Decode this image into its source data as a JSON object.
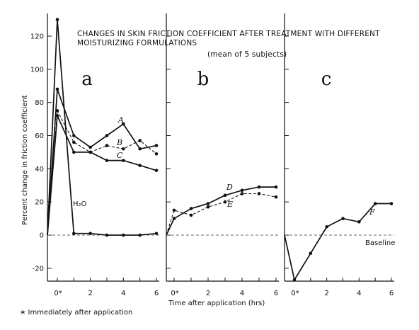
{
  "title": "CHANGES IN SKIN FRICTION COEFFICIENT AFTER TREATMENT WITH DIFFERENT",
  "title_line2": "MOISTURIZING FORMULATIONS",
  "subtitle": "(mean of 5 subjects)",
  "ylabel": "Percent change in friction coefficient",
  "xlabel": "Time after application (hrs)",
  "footnote": "∗ Immediately after application",
  "baseline_label": "Baseline",
  "chart_data": [
    {
      "type": "line",
      "panel": "a",
      "ylim": [
        -25,
        130
      ],
      "yticks": [
        "-20",
        "0",
        "20",
        "40",
        "60",
        "80",
        "100",
        "120"
      ],
      "ytick_values": [
        -20,
        0,
        20,
        40,
        60,
        80,
        100,
        120
      ],
      "xlim": [
        -1,
        6
      ],
      "xticks": [
        "0*",
        "2",
        "4",
        "6"
      ],
      "xtick_values": [
        0,
        2,
        4,
        6
      ],
      "baseline": 0,
      "series": [
        {
          "name": "A",
          "style": "solid",
          "x": [
            -1,
            0,
            1,
            2,
            3,
            4,
            5,
            6
          ],
          "y": [
            0,
            88,
            60,
            53,
            60,
            67,
            52,
            54
          ]
        },
        {
          "name": "B",
          "style": "dashed",
          "x": [
            -1,
            0,
            1,
            2,
            3,
            4,
            5,
            6
          ],
          "y": [
            0,
            75,
            56,
            50,
            54,
            52,
            57,
            49
          ]
        },
        {
          "name": "C",
          "style": "solid",
          "x": [
            -1,
            0,
            1,
            2,
            3,
            4,
            5,
            6
          ],
          "y": [
            0,
            72,
            50,
            50,
            45,
            45,
            42,
            39
          ]
        },
        {
          "name": "H₂O",
          "style": "solid",
          "x": [
            -1,
            0,
            1,
            2,
            3,
            4,
            5,
            6
          ],
          "y": [
            0,
            130,
            1,
            1,
            0,
            0,
            0,
            1
          ]
        }
      ]
    },
    {
      "type": "line",
      "panel": "b",
      "ylim": [
        -25,
        130
      ],
      "xlim": [
        -1,
        6
      ],
      "xticks": [
        "0*",
        "2",
        "4",
        "6"
      ],
      "xtick_values": [
        0,
        2,
        4,
        6
      ],
      "baseline": 0,
      "series": [
        {
          "name": "D",
          "style": "solid",
          "x": [
            -1,
            0,
            1,
            2,
            3,
            4,
            5,
            6
          ],
          "y": [
            0,
            10,
            16,
            19,
            24,
            27,
            29,
            29
          ]
        },
        {
          "name": "E",
          "style": "dashed",
          "x": [
            -1,
            0,
            1,
            2,
            3,
            4,
            5,
            6
          ],
          "y": [
            0,
            15,
            12,
            17,
            20,
            25,
            25,
            23
          ]
        }
      ]
    },
    {
      "type": "line",
      "panel": "c",
      "ylim": [
        -25,
        130
      ],
      "xlim": [
        -1,
        6
      ],
      "xticks": [
        "0*",
        "2",
        "4",
        "6"
      ],
      "xtick_values": [
        0,
        2,
        4,
        6
      ],
      "baseline": 0,
      "series": [
        {
          "name": "F",
          "style": "solid",
          "x": [
            -1,
            0,
            1,
            2,
            3,
            4,
            5,
            6
          ],
          "y": [
            0,
            -27,
            -11,
            5,
            10,
            8,
            19,
            19
          ]
        }
      ]
    }
  ]
}
